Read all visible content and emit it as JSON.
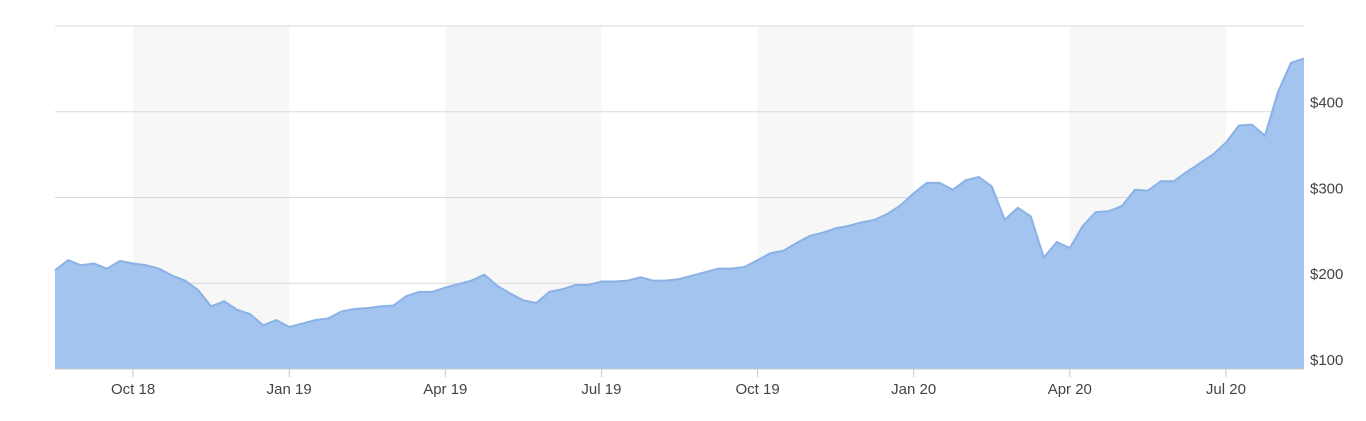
{
  "chart_data": {
    "type": "area",
    "categories": [
      null,
      null,
      null,
      null,
      null,
      null,
      "Oct 18",
      null,
      null,
      null,
      null,
      null,
      null,
      null,
      null,
      null,
      null,
      null,
      "Jan 19",
      null,
      null,
      null,
      null,
      null,
      null,
      null,
      null,
      null,
      null,
      null,
      "Apr 19",
      null,
      null,
      null,
      null,
      null,
      null,
      null,
      null,
      null,
      null,
      null,
      "Jul 19",
      null,
      null,
      null,
      null,
      null,
      null,
      null,
      null,
      null,
      null,
      null,
      "Oct 19",
      null,
      null,
      null,
      null,
      null,
      null,
      null,
      null,
      null,
      null,
      null,
      "Jan 20",
      null,
      null,
      null,
      null,
      null,
      null,
      null,
      null,
      null,
      null,
      null,
      "Apr 20",
      null,
      null,
      null,
      null,
      null,
      null,
      null,
      null,
      null,
      null,
      null,
      "Jul 20",
      null,
      null,
      null,
      null,
      null,
      null
    ],
    "values": [
      215,
      227,
      221,
      223,
      217,
      226,
      223,
      221,
      217,
      209,
      203,
      192,
      173,
      179,
      169,
      164,
      151,
      157,
      149,
      153,
      157,
      159,
      167,
      170,
      171,
      173,
      174,
      185,
      190,
      190,
      195,
      199,
      203,
      210,
      197,
      188,
      180,
      177,
      190,
      193,
      198,
      198,
      202,
      202,
      203,
      207,
      203,
      203,
      205,
      209,
      213,
      217,
      217,
      219,
      227,
      235,
      238,
      247,
      255,
      259,
      264,
      267,
      271,
      274,
      281,
      291,
      305,
      317,
      317,
      309,
      320,
      324,
      313,
      274,
      288,
      278,
      230,
      248,
      241,
      267,
      283,
      284,
      290,
      309,
      308,
      319,
      319,
      330,
      340,
      350,
      364,
      384,
      385,
      372,
      423,
      457,
      462
    ],
    "color": "#a3c4ee",
    "line_color": "#8ab2e6",
    "ylim": [
      100,
      500
    ],
    "yticks": [
      {
        "value": 100,
        "label": "$100"
      },
      {
        "value": 200,
        "label": "$200"
      },
      {
        "value": 300,
        "label": "$300"
      },
      {
        "value": 400,
        "label": "$400"
      },
      500
    ],
    "grid": true,
    "y_axis_side": "right"
  }
}
